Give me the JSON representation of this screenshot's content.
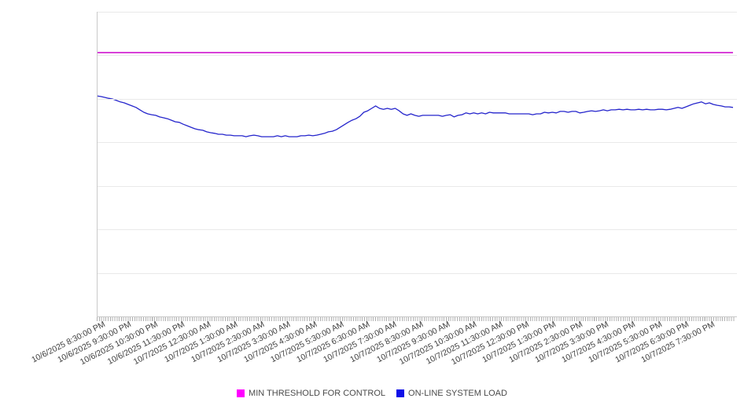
{
  "chart_data": {
    "type": "line",
    "title": "",
    "xlabel": "",
    "ylabel": "",
    "y_axis": {
      "labels_visible": false,
      "range": [
        0,
        100
      ],
      "units_note": "y-axis has no tick labels; values are relative units 0-100 estimated from gridlines",
      "gridline_count": 8,
      "grid_on": true
    },
    "x_axis": {
      "start": "10/6/2025 8:30:00 PM",
      "end": "10/7/2025 8:30:00 PM",
      "minor_ticks": "every ~5 minutes",
      "tick_labels": [
        "10/6/2025 8:30:00 PM",
        "10/6/2025 9:30:00 PM",
        "10/6/2025 10:30:00 PM",
        "10/6/2025 11:30:00 PM",
        "10/7/2025 12:30:00 AM",
        "10/7/2025 1:30:00 AM",
        "10/7/2025 2:30:00 AM",
        "10/7/2025 3:30:00 AM",
        "10/7/2025 4:30:00 AM",
        "10/7/2025 5:30:00 AM",
        "10/7/2025 6:30:00 AM",
        "10/7/2025 7:30:00 AM",
        "10/7/2025 8:30:00 AM",
        "10/7/2025 9:30:00 AM",
        "10/7/2025 10:30:00 AM",
        "10/7/2025 11:30:00 AM",
        "10/7/2025 12:30:00 PM",
        "10/7/2025 1:30:00 PM",
        "10/7/2025 2:30:00 PM",
        "10/7/2025 3:30:00 PM",
        "10/7/2025 4:30:00 PM",
        "10/7/2025 5:30:00 PM",
        "10/7/2025 6:30:00 PM",
        "10/7/2025 7:30:00 PM"
      ]
    },
    "series": [
      {
        "name": "MIN THRESHOLD FOR CONTROL",
        "type": "constant-threshold",
        "value": 86.6,
        "line_color": "#cc00cc"
      },
      {
        "name": "ON-LINE SYSTEM LOAD",
        "type": "line",
        "line_color": "#2525cc",
        "sample_interval_minutes": 8.9,
        "values": [
          72.4,
          72.2,
          71.9,
          71.6,
          71.4,
          70.9,
          70.4,
          70.1,
          69.6,
          69.1,
          68.6,
          67.8,
          67.0,
          66.5,
          66.2,
          66.0,
          65.5,
          65.2,
          64.9,
          64.4,
          63.9,
          63.7,
          63.1,
          62.6,
          62.1,
          61.6,
          61.3,
          61.1,
          60.6,
          60.3,
          60.1,
          59.8,
          59.8,
          59.5,
          59.5,
          59.3,
          59.3,
          59.3,
          59.0,
          59.3,
          59.5,
          59.3,
          59.0,
          59.0,
          59.0,
          59.0,
          59.3,
          59.0,
          59.3,
          59.0,
          59.0,
          59.0,
          59.3,
          59.3,
          59.5,
          59.3,
          59.5,
          59.8,
          60.1,
          60.6,
          60.8,
          61.3,
          62.1,
          62.9,
          63.7,
          64.4,
          64.9,
          65.7,
          67.0,
          67.5,
          68.3,
          69.1,
          68.3,
          68.0,
          68.3,
          68.0,
          68.3,
          67.5,
          66.5,
          66.0,
          66.5,
          66.0,
          65.7,
          66.0,
          66.0,
          66.0,
          66.0,
          66.0,
          65.7,
          66.0,
          66.2,
          65.5,
          66.0,
          66.2,
          66.8,
          66.5,
          66.8,
          66.5,
          66.8,
          66.5,
          67.0,
          66.8,
          66.8,
          66.8,
          66.8,
          66.5,
          66.5,
          66.5,
          66.5,
          66.5,
          66.5,
          66.2,
          66.5,
          66.5,
          67.0,
          66.8,
          67.0,
          66.8,
          67.3,
          67.3,
          67.0,
          67.3,
          67.3,
          66.8,
          67.0,
          67.3,
          67.5,
          67.3,
          67.5,
          67.8,
          67.5,
          67.8,
          67.8,
          68.0,
          67.8,
          68.0,
          67.8,
          67.8,
          68.0,
          67.8,
          68.0,
          67.8,
          67.8,
          68.0,
          68.0,
          67.8,
          68.0,
          68.3,
          68.6,
          68.3,
          68.8,
          69.3,
          69.8,
          70.1,
          70.4,
          69.8,
          70.1,
          69.6,
          69.3,
          69.1,
          68.8,
          68.8,
          68.6
        ]
      }
    ],
    "legend": {
      "position": "bottom-center",
      "entries": [
        {
          "label": "MIN THRESHOLD FOR CONTROL",
          "swatch_color": "#ff00ff"
        },
        {
          "label": "ON-LINE SYSTEM LOAD",
          "swatch_color": "#0f0fe8"
        }
      ]
    },
    "colors": {
      "gridline": "#e9e9e9",
      "axis_line": "#c9c9c9",
      "tick_marks": "#b0b0b0",
      "tick_label_text": "#3d3d3d",
      "legend_text": "#4a4a4a",
      "background": "#ffffff"
    }
  }
}
